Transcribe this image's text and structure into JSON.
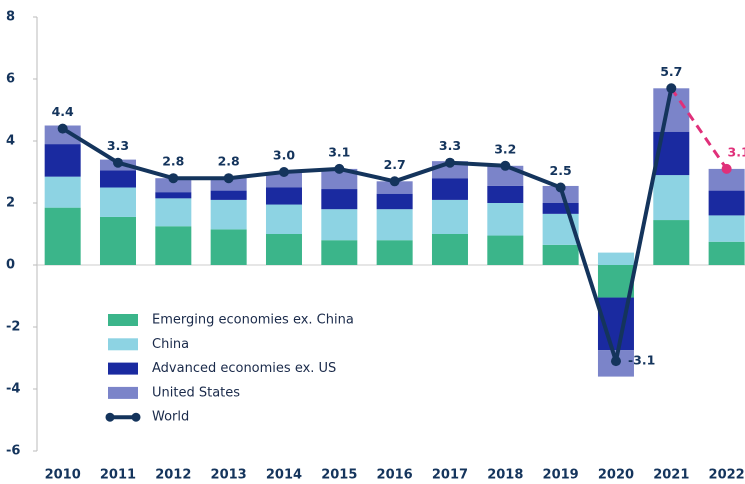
{
  "chart_data": {
    "type": "stacked_bar_line",
    "categories": [
      "2010",
      "2011",
      "2012",
      "2013",
      "2014",
      "2015",
      "2016",
      "2017",
      "2018",
      "2019",
      "2020",
      "2021",
      "2022"
    ],
    "series": [
      {
        "name": "Emerging economies ex. China",
        "color": "#3bb58a",
        "values": [
          1.85,
          1.55,
          1.25,
          1.15,
          1.0,
          0.8,
          0.8,
          1.0,
          0.95,
          0.65,
          -1.05,
          1.45,
          0.75
        ]
      },
      {
        "name": "China",
        "color": "#8dd3e3",
        "values": [
          1.0,
          0.95,
          0.9,
          0.95,
          0.95,
          1.0,
          1.0,
          1.1,
          1.05,
          1.0,
          0.4,
          1.45,
          0.85
        ]
      },
      {
        "name": "Advanced economies ex. US",
        "color": "#1a2aa0",
        "values": [
          1.05,
          0.55,
          0.2,
          0.3,
          0.55,
          0.65,
          0.5,
          0.7,
          0.55,
          0.35,
          -1.7,
          1.4,
          0.8
        ]
      },
      {
        "name": "United States",
        "color": "#7b84c9",
        "values": [
          0.6,
          0.35,
          0.45,
          0.45,
          0.5,
          0.65,
          0.4,
          0.55,
          0.65,
          0.55,
          -0.85,
          1.4,
          0.7
        ]
      },
      {
        "name": "World",
        "type": "line",
        "color": "#14345c",
        "forecast_color": "#e0307a",
        "forecast_from": "2021",
        "values": [
          4.4,
          3.3,
          2.8,
          2.8,
          3.0,
          3.1,
          2.7,
          3.3,
          3.2,
          2.5,
          -3.1,
          5.7,
          3.1
        ],
        "value_labels": [
          "4.4",
          "3.3",
          "2.8",
          "2.8",
          "3.0",
          "3.1",
          "2.7",
          "3.3",
          "3.2",
          "2.5",
          "-3.1",
          "5.7",
          "3.1"
        ]
      }
    ],
    "ylim": [
      -6,
      8
    ],
    "yticks": [
      -6,
      -4,
      -2,
      0,
      2,
      4,
      6,
      8
    ],
    "grid": false,
    "legend": "lower left"
  }
}
